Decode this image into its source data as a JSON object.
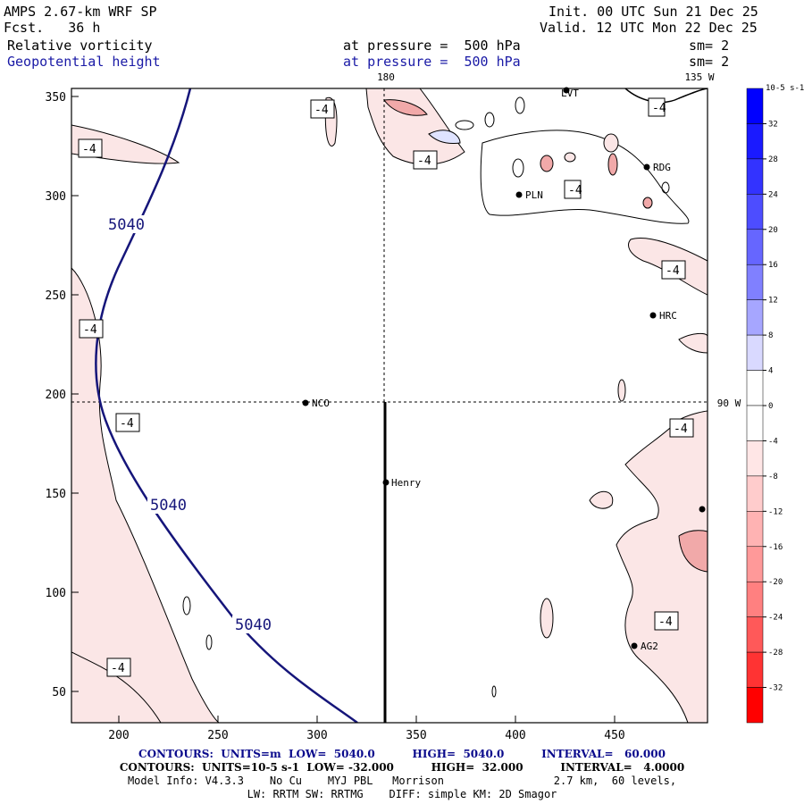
{
  "header": {
    "model": "AMPS 2.67-km WRF SP",
    "fcst": "Fcst.   36 h",
    "init": "Init. 00 UTC Sun 21 Dec 25",
    "valid": "Valid. 12 UTC Mon 22 Dec 25",
    "field1_name": "Relative vorticity",
    "field1_level": "at pressure =  500 hPa",
    "field1_sm": "sm= 2",
    "field2_name": "Geopotential height",
    "field2_level": "at pressure =  500 hPa",
    "field2_sm": "sm= 2"
  },
  "map": {
    "x_ticks": [
      "200",
      "250",
      "300",
      "350",
      "400",
      "450"
    ],
    "y_ticks": [
      "350",
      "300",
      "250",
      "200",
      "150",
      "100",
      "50"
    ],
    "meridian_180": "180",
    "meridian_135w": "135 W",
    "meridian_90w": "90 W",
    "stations": [
      {
        "name": "LVT"
      },
      {
        "name": "RDG"
      },
      {
        "name": "PLN"
      },
      {
        "name": "HRC"
      },
      {
        "name": "NCO"
      },
      {
        "name": "Henry"
      },
      {
        "name": "AG2"
      }
    ],
    "height_labels": [
      "5040",
      "5040",
      "5040"
    ],
    "vort_labels": [
      "-4",
      "-4",
      "-4",
      "-4",
      "-4",
      "-4",
      "-4",
      "-4",
      "-4",
      "-4",
      "-4"
    ]
  },
  "colorbar": {
    "unit": "10-5 s-1",
    "labels": [
      "32",
      "28",
      "24",
      "20",
      "16",
      "12",
      "8",
      "4",
      "0",
      "-4",
      "-8",
      "-12",
      "-16",
      "-20",
      "-24",
      "-28",
      "-32"
    ],
    "colors": [
      "#0000ff",
      "#1a1aff",
      "#3333ff",
      "#4d4dff",
      "#6666ff",
      "#8080ff",
      "#a6a6ff",
      "#d9d9ff",
      "#ffffff",
      "#ffffff",
      "#ffe6e6",
      "#ffcccc",
      "#ffb3b3",
      "#ff9999",
      "#ff8080",
      "#ff5959",
      "#ff3333",
      "#ff0000"
    ]
  },
  "footer": {
    "contours1": "CONTOURS:  UNITS=m  LOW=  5040.0          HIGH=  5040.0          INTERVAL=   60.000",
    "contours2": "CONTOURS:  UNITS=10-5 s-1  LOW= -32.000          HIGH=  32.000          INTERVAL=   4.0000",
    "info1": "Model Info: V4.3.3    No Cu    MYJ PBL   Morrison                 2.7 km,  60 levels,",
    "info2": "LW: RRTM SW: RRTMG    DIFF: simple KM: 2D Smagor"
  }
}
